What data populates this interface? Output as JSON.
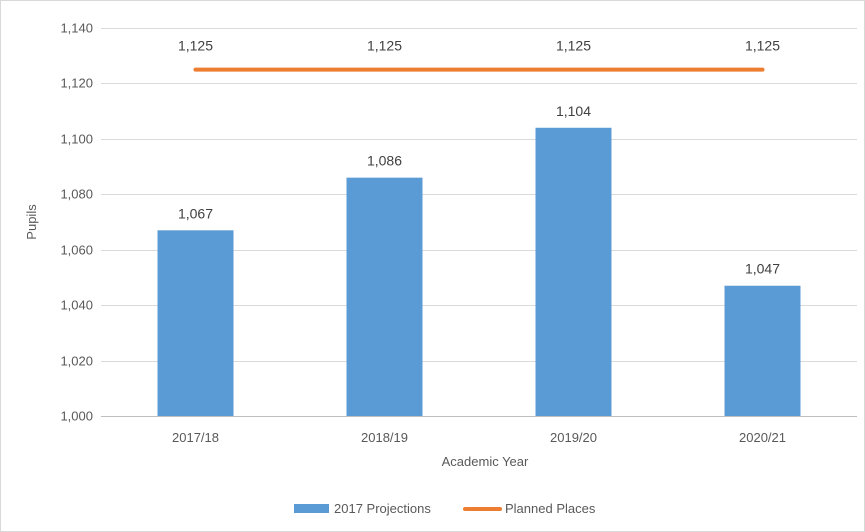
{
  "chart_data": {
    "type": "bar",
    "categories": [
      "2017/18",
      "2018/19",
      "2019/20",
      "2020/21"
    ],
    "series": [
      {
        "name": "2017 Projections",
        "type": "bar",
        "values": [
          1067,
          1086,
          1104,
          1047
        ],
        "labels": [
          "1,067",
          "1,086",
          "1,104",
          "1,047"
        ],
        "color": "#5B9BD5"
      },
      {
        "name": "Planned Places",
        "type": "line",
        "values": [
          1125,
          1125,
          1125,
          1125
        ],
        "labels": [
          "1,125",
          "1,125",
          "1,125",
          "1,125"
        ],
        "color": "#ED7D31"
      }
    ],
    "xlabel": "Academic Year",
    "ylabel": "Pupils",
    "ylim": [
      1000,
      1140
    ],
    "yticks": [
      1000,
      1020,
      1040,
      1060,
      1080,
      1100,
      1120,
      1140
    ],
    "ytick_labels": [
      "1,000",
      "1,020",
      "1,040",
      "1,060",
      "1,080",
      "1,100",
      "1,120",
      "1,140"
    ],
    "grid": true,
    "legend": "bottom",
    "colors": {
      "grid": "#D9D9D9",
      "axis": "#BFBFBF",
      "border": "#D9D9D9"
    }
  }
}
